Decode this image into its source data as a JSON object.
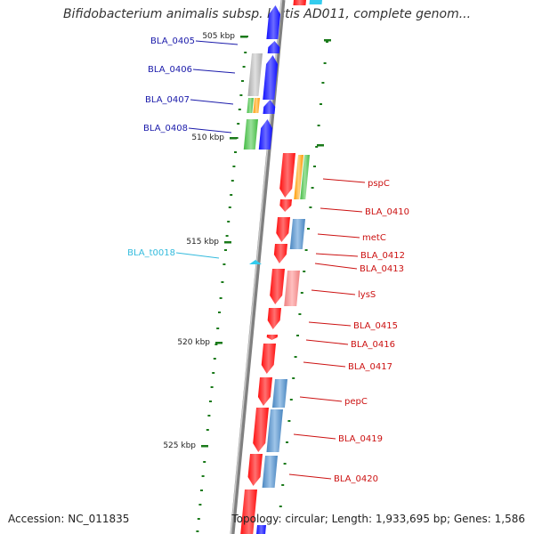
{
  "header": {
    "title": "Bifidobacterium animalis subsp. lactis AD011, complete genom..."
  },
  "footer": {
    "accession": "Accession: NC_011835",
    "topology": "Topology: circular; Length: 1,933,695 bp; Genes: 1,586"
  },
  "colors": {
    "backbone": "#808080",
    "forward_gene": "#1010ff",
    "reverse_gene": "#ff1010",
    "trna_gene": "#33ccee",
    "ruler_tick": "#1a7a1a",
    "left_label": "#1a1aaa",
    "right_label": "#cc1111",
    "trna_label": "#33bbdd",
    "cog_gray": "#aaaaaa",
    "cog_green": "#44bb44",
    "cog_orange": "#ff9900",
    "cog_steelblue": "#4a86c0",
    "cog_pink": "#ee8080"
  },
  "ruler": [
    {
      "label": "505 kbp",
      "kbp": 505
    },
    {
      "label": "510 kbp",
      "kbp": 510
    },
    {
      "label": "515 kbp",
      "kbp": 515
    },
    {
      "label": "520 kbp",
      "kbp": 520
    },
    {
      "label": "525 kbp",
      "kbp": 525
    }
  ],
  "left_labels": [
    {
      "text": "BLA_0405",
      "kind": "gene"
    },
    {
      "text": "BLA_0406",
      "kind": "gene"
    },
    {
      "text": "BLA_0407",
      "kind": "gene"
    },
    {
      "text": "BLA_0408",
      "kind": "gene"
    },
    {
      "text": "BLA_t0018",
      "kind": "trna"
    }
  ],
  "right_labels": [
    {
      "text": "pspC"
    },
    {
      "text": "BLA_0410"
    },
    {
      "text": "metC"
    },
    {
      "text": "BLA_0412"
    },
    {
      "text": "BLA_0413"
    },
    {
      "text": "lysS"
    },
    {
      "text": "BLA_0415"
    },
    {
      "text": "BLA_0416"
    },
    {
      "text": "BLA_0417"
    },
    {
      "text": "pepC"
    },
    {
      "text": "BLA_0419"
    },
    {
      "text": "BLA_0420"
    }
  ]
}
